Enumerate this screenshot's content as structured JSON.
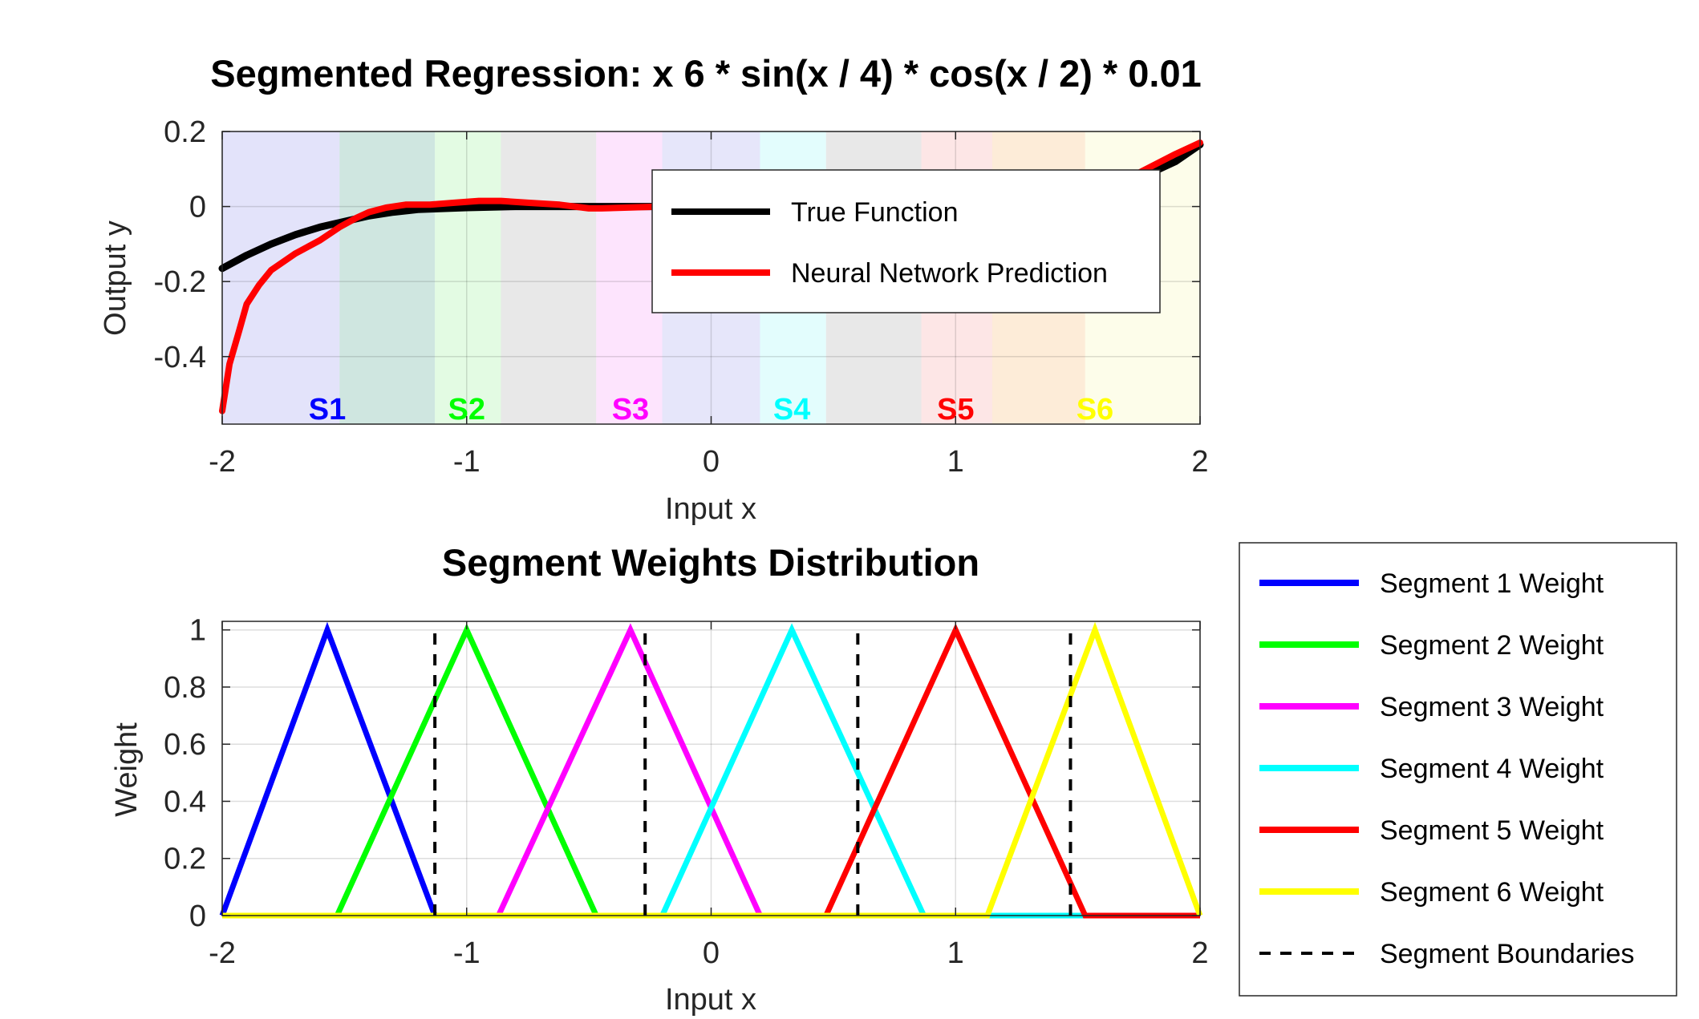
{
  "chart_data": [
    {
      "type": "line",
      "title": "Segmented Regression: x  6 * sin(x / 4) * cos(x / 2) * 0.01",
      "xlabel": "Input x",
      "ylabel": "Output y",
      "xlim": [
        -2,
        2
      ],
      "ylim": [
        -0.58,
        0.2
      ],
      "xticks": [
        "-2",
        "-1",
        "0",
        "1",
        "2"
      ],
      "yticks": [
        "0.2",
        "0",
        "-0.2",
        "-0.4"
      ],
      "ytick_values": [
        0.2,
        0,
        -0.2,
        -0.4
      ],
      "grid": true,
      "legend_position": "top-right",
      "segment_bands": [
        {
          "from": -2.0,
          "to": -1.52,
          "color": "#ccccf5"
        },
        {
          "from": -1.52,
          "to": -1.13,
          "color": "#a8d2c6"
        },
        {
          "from": -1.13,
          "to": -0.86,
          "color": "#ccf7cc"
        },
        {
          "from": -0.86,
          "to": -0.47,
          "color": "#d6d6d6"
        },
        {
          "from": -0.47,
          "to": -0.2,
          "color": "#fccdfc"
        },
        {
          "from": -0.2,
          "to": 0.2,
          "color": "#d2d2f5"
        },
        {
          "from": 0.2,
          "to": 0.47,
          "color": "#ccfcfc"
        },
        {
          "from": 0.47,
          "to": 0.86,
          "color": "#d6d6d6"
        },
        {
          "from": 0.86,
          "to": 1.15,
          "color": "#fcd2d2"
        },
        {
          "from": 1.15,
          "to": 1.53,
          "color": "#fcdcb8"
        },
        {
          "from": 1.53,
          "to": 2.0,
          "color": "#fcfcd8"
        }
      ],
      "segment_labels": [
        {
          "text": "S1",
          "x": -1.57,
          "color": "#0000ff"
        },
        {
          "text": "S2",
          "x": -1.0,
          "color": "#00ff00"
        },
        {
          "text": "S3",
          "x": -0.33,
          "color": "#ff00ff"
        },
        {
          "text": "S4",
          "x": 0.33,
          "color": "#00ffff"
        },
        {
          "text": "S5",
          "x": 1.0,
          "color": "#ff0000"
        },
        {
          "text": "S6",
          "x": 1.57,
          "color": "#ffff00"
        }
      ],
      "series": [
        {
          "name": "True Function",
          "color": "#000000",
          "x": [
            -2.0,
            -1.9,
            -1.8,
            -1.7,
            -1.6,
            -1.5,
            -1.4,
            -1.3,
            -1.2,
            -1.0,
            -0.8,
            -0.6,
            -0.4,
            -0.2,
            0.0,
            0.2,
            0.4,
            0.6,
            0.8,
            1.0,
            1.2,
            1.4,
            1.6,
            1.7,
            1.8,
            1.9,
            2.0
          ],
          "y": [
            -0.165,
            -0.13,
            -0.1,
            -0.075,
            -0.055,
            -0.04,
            -0.025,
            -0.015,
            -0.008,
            -0.003,
            0.0,
            0.0,
            0.0,
            0.0,
            0.0,
            0.0,
            0.0,
            0.0,
            0.0,
            0.002,
            0.008,
            0.02,
            0.045,
            0.065,
            0.09,
            0.12,
            0.165
          ]
        },
        {
          "name": "Neural Network Prediction",
          "color": "#ff0000",
          "x": [
            -2.0,
            -1.97,
            -1.93,
            -1.9,
            -1.85,
            -1.8,
            -1.7,
            -1.6,
            -1.52,
            -1.45,
            -1.4,
            -1.33,
            -1.25,
            -1.15,
            -1.05,
            -0.95,
            -0.86,
            -0.75,
            -0.62,
            -0.5,
            -0.45,
            -0.3,
            -0.2,
            -0.1,
            0.0,
            0.2,
            0.4,
            0.6,
            0.8,
            1.0,
            1.2,
            1.4,
            1.6,
            1.75,
            1.9,
            2.0
          ],
          "y": [
            -0.545,
            -0.42,
            -0.33,
            -0.26,
            -0.21,
            -0.17,
            -0.125,
            -0.09,
            -0.055,
            -0.03,
            -0.015,
            -0.003,
            0.005,
            0.005,
            0.01,
            0.015,
            0.015,
            0.01,
            0.005,
            -0.005,
            -0.005,
            -0.002,
            0.0,
            0.0,
            0.0,
            0.0,
            0.0,
            0.0,
            0.0,
            0.002,
            0.008,
            0.02,
            0.045,
            0.09,
            0.14,
            0.17
          ]
        }
      ]
    },
    {
      "type": "line",
      "title": "Segment Weights Distribution",
      "xlabel": "Input x",
      "ylabel": "Weight",
      "xlim": [
        -2,
        2
      ],
      "ylim": [
        0,
        1.03
      ],
      "xticks": [
        "-2",
        "-1",
        "0",
        "1",
        "2"
      ],
      "yticks": [
        "1",
        "0.8",
        "0.6",
        "0.4",
        "0.2",
        "0"
      ],
      "ytick_values": [
        1,
        0.8,
        0.6,
        0.4,
        0.2,
        0
      ],
      "grid": true,
      "legend_position": "outside-right",
      "series": [
        {
          "name": "Segment 1 Weight",
          "color": "#0000ff",
          "x": [
            -2.0,
            -1.57,
            -1.13,
            2.0
          ],
          "y": [
            0,
            1,
            0,
            0
          ]
        },
        {
          "name": "Segment 2 Weight",
          "color": "#00ff00",
          "x": [
            -2.0,
            -1.53,
            -1.0,
            -0.47,
            2.0
          ],
          "y": [
            0,
            0,
            1,
            0,
            0
          ]
        },
        {
          "name": "Segment 3 Weight",
          "color": "#ff00ff",
          "x": [
            -2.0,
            -0.87,
            -0.33,
            0.2,
            2.0
          ],
          "y": [
            0,
            0,
            1,
            0,
            0
          ]
        },
        {
          "name": "Segment 4 Weight",
          "color": "#00ffff",
          "x": [
            -2.0,
            -0.2,
            0.33,
            0.87,
            2.0
          ],
          "y": [
            0,
            0,
            1,
            0,
            0
          ]
        },
        {
          "name": "Segment 5 Weight",
          "color": "#ff0000",
          "x": [
            -2.0,
            0.47,
            1.0,
            1.53,
            2.0
          ],
          "y": [
            0,
            0,
            1,
            0,
            0
          ]
        },
        {
          "name": "Segment 6 Weight",
          "color": "#ffff00",
          "x": [
            -2.0,
            1.13,
            1.57,
            2.0
          ],
          "y": [
            0,
            0,
            1,
            0
          ]
        }
      ],
      "boundaries": {
        "name": "Segment Boundaries",
        "x": [
          -1.13,
          -0.27,
          0.6,
          1.47
        ]
      }
    }
  ]
}
